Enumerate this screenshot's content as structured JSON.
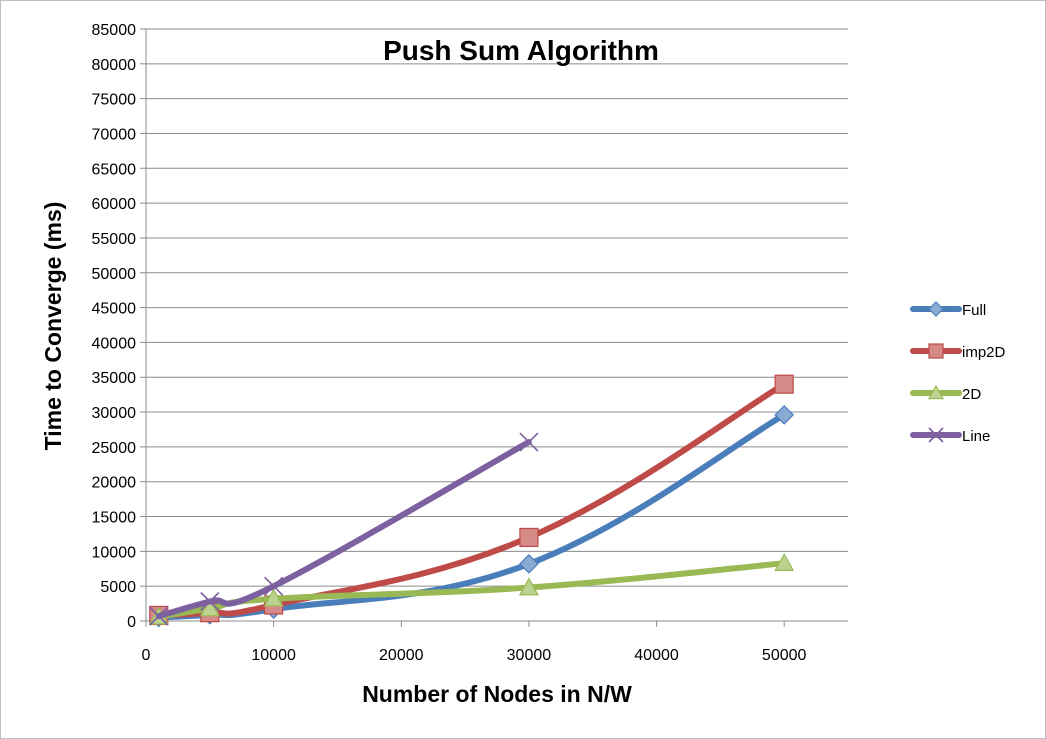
{
  "chart_data": {
    "type": "line",
    "title": "Push Sum Algorithm",
    "xlabel": "Number of Nodes in N/W",
    "ylabel": "Time to Converge (ms)",
    "xlim": [
      0,
      55000
    ],
    "ylim": [
      0,
      85000
    ],
    "x_ticks": [
      0,
      10000,
      20000,
      30000,
      40000,
      50000
    ],
    "y_ticks": [
      0,
      5000,
      10000,
      15000,
      20000,
      25000,
      30000,
      35000,
      40000,
      45000,
      50000,
      55000,
      60000,
      65000,
      70000,
      75000,
      80000,
      85000
    ],
    "grid": "horizontal",
    "legend_position": "right",
    "series": [
      {
        "name": "Full",
        "color": "#4a7ebb",
        "marker": "diamond",
        "x": [
          1000,
          5000,
          10000,
          30000,
          50000
        ],
        "y": [
          500,
          900,
          1700,
          8200,
          29600
        ]
      },
      {
        "name": "imp2D",
        "color": "#be4b48",
        "marker": "square",
        "x": [
          1000,
          5000,
          10000,
          30000,
          50000
        ],
        "y": [
          800,
          1200,
          2300,
          12000,
          34000
        ]
      },
      {
        "name": "2D",
        "color": "#98b954",
        "marker": "triangle",
        "x": [
          1000,
          5000,
          10000,
          30000,
          50000
        ],
        "y": [
          600,
          1800,
          3200,
          4800,
          8300
        ]
      },
      {
        "name": "Line",
        "color": "#7d60a0",
        "marker": "x",
        "x": [
          1000,
          5000,
          10000,
          30000
        ],
        "y": [
          700,
          2800,
          5000,
          25700
        ]
      }
    ]
  }
}
